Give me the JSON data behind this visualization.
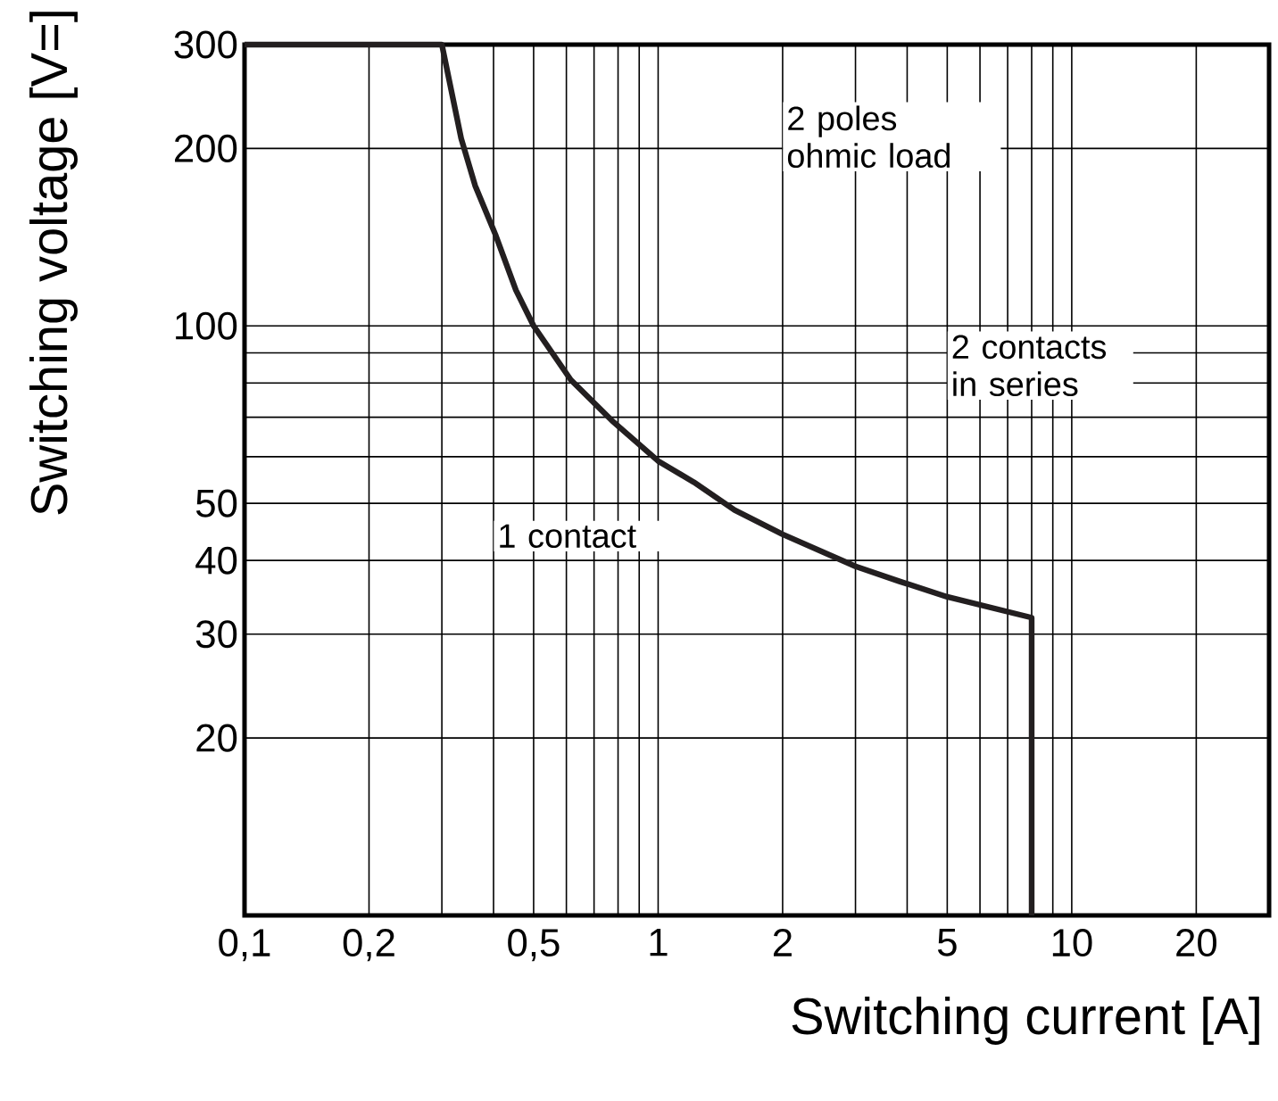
{
  "chart_data": {
    "type": "line",
    "xlabel": "Switching current [A]",
    "ylabel": "Switching voltage [V=]",
    "log": "xy",
    "grid": true,
    "marker": "none",
    "line_style": "solid",
    "xlim": [
      0.1,
      30
    ],
    "ylim": [
      10,
      300
    ],
    "xticks": [
      {
        "value": 0.1,
        "label": "0,1"
      },
      {
        "value": 0.2,
        "label": "0,2"
      },
      {
        "value": 0.5,
        "label": "0,5"
      },
      1,
      2,
      5,
      10,
      20
    ],
    "yticks": [
      20,
      30,
      40,
      50,
      100,
      200,
      300
    ],
    "annotations": [
      "2 poles ohmic load",
      "2 contacts in series",
      "1 contact"
    ],
    "series": [
      {
        "color": "#231f20",
        "x": [
          0.1,
          0.3,
          0.334,
          0.361,
          0.404,
          0.453,
          0.5,
          0.615,
          0.773,
          1,
          1.22,
          1.53,
          2,
          3,
          3.82,
          5,
          8,
          8
        ],
        "values": [
          300,
          300,
          208,
          173,
          143,
          115,
          100,
          81,
          69.1,
          59,
          54.3,
          48.7,
          44.3,
          39.1,
          36.9,
          34.7,
          32,
          10
        ]
      }
    ]
  }
}
